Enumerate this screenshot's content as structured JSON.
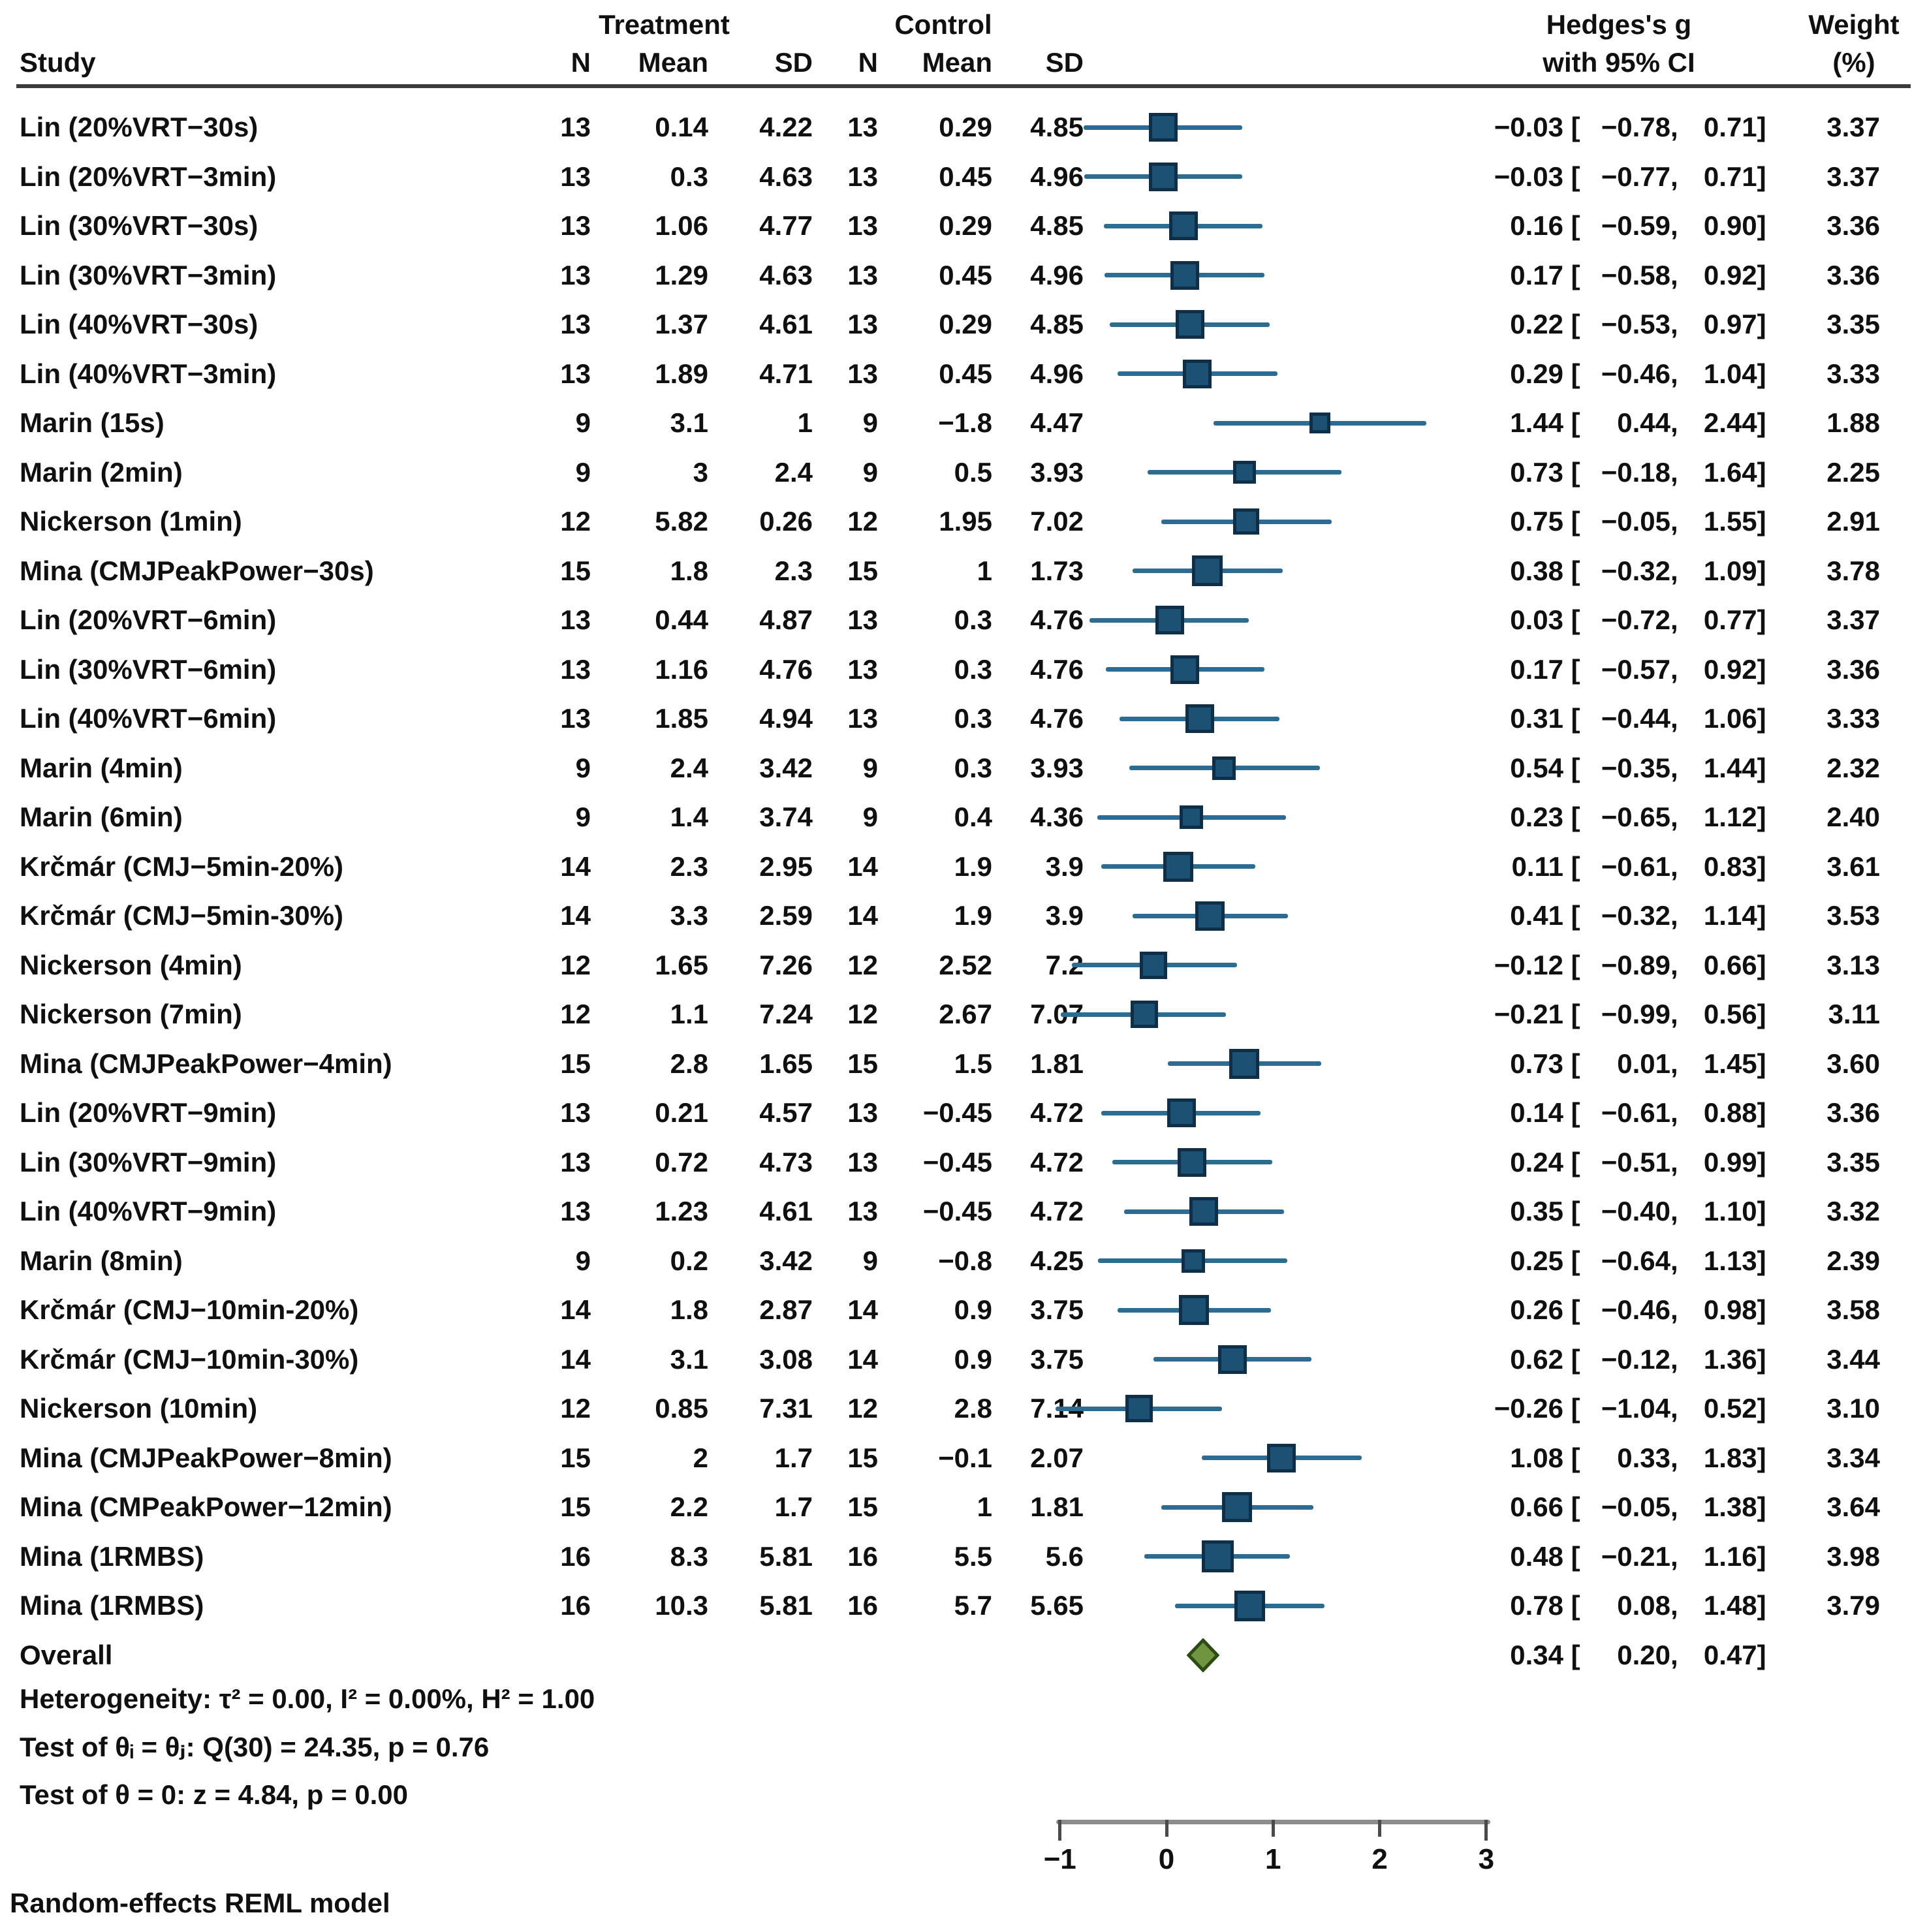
{
  "header": {
    "treatment": "Treatment",
    "control": "Control",
    "study": "Study",
    "n": "N",
    "mean": "Mean",
    "sd": "SD",
    "effect_line1": "Hedges's g",
    "effect_line2": "with 95% CI",
    "weight_line1": "Weight",
    "weight_line2": "(%)"
  },
  "chart_data": {
    "type": "forest",
    "effect_measure": "Hedges's g",
    "x_ticks": [
      -1,
      0,
      1,
      2,
      3
    ],
    "x_range": [
      -1,
      3
    ],
    "legend_position": "none",
    "grid": false,
    "studies": [
      {
        "study": "Lin (20%VRT-30s)",
        "t_n": "13",
        "t_mean": "0.14",
        "t_sd": "4.22",
        "c_n": "13",
        "c_mean": "0.29",
        "c_sd": "4.85",
        "g": -0.03,
        "ci_low": -0.78,
        "ci_high": 0.71,
        "weight": "3.37"
      },
      {
        "study": "Lin (20%VRT-3min)",
        "t_n": "13",
        "t_mean": "0.3",
        "t_sd": "4.63",
        "c_n": "13",
        "c_mean": "0.45",
        "c_sd": "4.96",
        "g": -0.03,
        "ci_low": -0.77,
        "ci_high": 0.71,
        "weight": "3.37"
      },
      {
        "study": "Lin (30%VRT-30s)",
        "t_n": "13",
        "t_mean": "1.06",
        "t_sd": "4.77",
        "c_n": "13",
        "c_mean": "0.29",
        "c_sd": "4.85",
        "g": 0.16,
        "ci_low": -0.59,
        "ci_high": 0.9,
        "weight": "3.36"
      },
      {
        "study": "Lin (30%VRT-3min)",
        "t_n": "13",
        "t_mean": "1.29",
        "t_sd": "4.63",
        "c_n": "13",
        "c_mean": "0.45",
        "c_sd": "4.96",
        "g": 0.17,
        "ci_low": -0.58,
        "ci_high": 0.92,
        "weight": "3.36"
      },
      {
        "study": "Lin (40%VRT-30s)",
        "t_n": "13",
        "t_mean": "1.37",
        "t_sd": "4.61",
        "c_n": "13",
        "c_mean": "0.29",
        "c_sd": "4.85",
        "g": 0.22,
        "ci_low": -0.53,
        "ci_high": 0.97,
        "weight": "3.35"
      },
      {
        "study": "Lin (40%VRT-3min)",
        "t_n": "13",
        "t_mean": "1.89",
        "t_sd": "4.71",
        "c_n": "13",
        "c_mean": "0.45",
        "c_sd": "4.96",
        "g": 0.29,
        "ci_low": -0.46,
        "ci_high": 1.04,
        "weight": "3.33"
      },
      {
        "study": "Marin (15s)",
        "t_n": "9",
        "t_mean": "3.1",
        "t_sd": "1",
        "c_n": "9",
        "c_mean": "-1.8",
        "c_sd": "4.47",
        "g": 1.44,
        "ci_low": 0.44,
        "ci_high": 2.44,
        "weight": "1.88"
      },
      {
        "study": "Marin (2min)",
        "t_n": "9",
        "t_mean": "3",
        "t_sd": "2.4",
        "c_n": "9",
        "c_mean": "0.5",
        "c_sd": "3.93",
        "g": 0.73,
        "ci_low": -0.18,
        "ci_high": 1.64,
        "weight": "2.25"
      },
      {
        "study": "Nickerson (1min)",
        "t_n": "12",
        "t_mean": "5.82",
        "t_sd": "0.26",
        "c_n": "12",
        "c_mean": "1.95",
        "c_sd": "7.02",
        "g": 0.75,
        "ci_low": -0.05,
        "ci_high": 1.55,
        "weight": "2.91"
      },
      {
        "study": "Mina (CMJPeakPower-30s)",
        "t_n": "15",
        "t_mean": "1.8",
        "t_sd": "2.3",
        "c_n": "15",
        "c_mean": "1",
        "c_sd": "1.73",
        "g": 0.38,
        "ci_low": -0.32,
        "ci_high": 1.09,
        "weight": "3.78"
      },
      {
        "study": "Lin (20%VRT-6min)",
        "t_n": "13",
        "t_mean": "0.44",
        "t_sd": "4.87",
        "c_n": "13",
        "c_mean": "0.3",
        "c_sd": "4.76",
        "g": 0.03,
        "ci_low": -0.72,
        "ci_high": 0.77,
        "weight": "3.37"
      },
      {
        "study": "Lin (30%VRT-6min)",
        "t_n": "13",
        "t_mean": "1.16",
        "t_sd": "4.76",
        "c_n": "13",
        "c_mean": "0.3",
        "c_sd": "4.76",
        "g": 0.17,
        "ci_low": -0.57,
        "ci_high": 0.92,
        "weight": "3.36"
      },
      {
        "study": "Lin (40%VRT-6min)",
        "t_n": "13",
        "t_mean": "1.85",
        "t_sd": "4.94",
        "c_n": "13",
        "c_mean": "0.3",
        "c_sd": "4.76",
        "g": 0.31,
        "ci_low": -0.44,
        "ci_high": 1.06,
        "weight": "3.33"
      },
      {
        "study": "Marin (4min)",
        "t_n": "9",
        "t_mean": "2.4",
        "t_sd": "3.42",
        "c_n": "9",
        "c_mean": "0.3",
        "c_sd": "3.93",
        "g": 0.54,
        "ci_low": -0.35,
        "ci_high": 1.44,
        "weight": "2.32"
      },
      {
        "study": "Marin (6min)",
        "t_n": "9",
        "t_mean": "1.4",
        "t_sd": "3.74",
        "c_n": "9",
        "c_mean": "0.4",
        "c_sd": "4.36",
        "g": 0.23,
        "ci_low": -0.65,
        "ci_high": 1.12,
        "weight": "2.40"
      },
      {
        "study": "Krčmár (CMJ-5min-20%)",
        "t_n": "14",
        "t_mean": "2.3",
        "t_sd": "2.95",
        "c_n": "14",
        "c_mean": "1.9",
        "c_sd": "3.9",
        "g": 0.11,
        "ci_low": -0.61,
        "ci_high": 0.83,
        "weight": "3.61"
      },
      {
        "study": "Krčmár (CMJ-5min-30%)",
        "t_n": "14",
        "t_mean": "3.3",
        "t_sd": "2.59",
        "c_n": "14",
        "c_mean": "1.9",
        "c_sd": "3.9",
        "g": 0.41,
        "ci_low": -0.32,
        "ci_high": 1.14,
        "weight": "3.53"
      },
      {
        "study": "Nickerson (4min)",
        "t_n": "12",
        "t_mean": "1.65",
        "t_sd": "7.26",
        "c_n": "12",
        "c_mean": "2.52",
        "c_sd": "7.2",
        "g": -0.12,
        "ci_low": -0.89,
        "ci_high": 0.66,
        "weight": "3.13"
      },
      {
        "study": "Nickerson (7min)",
        "t_n": "12",
        "t_mean": "1.1",
        "t_sd": "7.24",
        "c_n": "12",
        "c_mean": "2.67",
        "c_sd": "7.07",
        "g": -0.21,
        "ci_low": -0.99,
        "ci_high": 0.56,
        "weight": "3.11"
      },
      {
        "study": "Mina (CMJPeakPower-4min)",
        "t_n": "15",
        "t_mean": "2.8",
        "t_sd": "1.65",
        "c_n": "15",
        "c_mean": "1.5",
        "c_sd": "1.81",
        "g": 0.73,
        "ci_low": 0.01,
        "ci_high": 1.45,
        "weight": "3.60"
      },
      {
        "study": "Lin (20%VRT-9min)",
        "t_n": "13",
        "t_mean": "0.21",
        "t_sd": "4.57",
        "c_n": "13",
        "c_mean": "-0.45",
        "c_sd": "4.72",
        "g": 0.14,
        "ci_low": -0.61,
        "ci_high": 0.88,
        "weight": "3.36"
      },
      {
        "study": "Lin (30%VRT-9min)",
        "t_n": "13",
        "t_mean": "0.72",
        "t_sd": "4.73",
        "c_n": "13",
        "c_mean": "-0.45",
        "c_sd": "4.72",
        "g": 0.24,
        "ci_low": -0.51,
        "ci_high": 0.99,
        "weight": "3.35"
      },
      {
        "study": "Lin (40%VRT-9min)",
        "t_n": "13",
        "t_mean": "1.23",
        "t_sd": "4.61",
        "c_n": "13",
        "c_mean": "-0.45",
        "c_sd": "4.72",
        "g": 0.35,
        "ci_low": -0.4,
        "ci_high": 1.1,
        "weight": "3.32"
      },
      {
        "study": "Marin (8min)",
        "t_n": "9",
        "t_mean": "0.2",
        "t_sd": "3.42",
        "c_n": "9",
        "c_mean": "-0.8",
        "c_sd": "4.25",
        "g": 0.25,
        "ci_low": -0.64,
        "ci_high": 1.13,
        "weight": "2.39"
      },
      {
        "study": "Krčmár (CMJ-10min-20%)",
        "t_n": "14",
        "t_mean": "1.8",
        "t_sd": "2.87",
        "c_n": "14",
        "c_mean": "0.9",
        "c_sd": "3.75",
        "g": 0.26,
        "ci_low": -0.46,
        "ci_high": 0.98,
        "weight": "3.58"
      },
      {
        "study": "Krčmár (CMJ-10min-30%)",
        "t_n": "14",
        "t_mean": "3.1",
        "t_sd": "3.08",
        "c_n": "14",
        "c_mean": "0.9",
        "c_sd": "3.75",
        "g": 0.62,
        "ci_low": -0.12,
        "ci_high": 1.36,
        "weight": "3.44"
      },
      {
        "study": "Nickerson (10min)",
        "t_n": "12",
        "t_mean": "0.85",
        "t_sd": "7.31",
        "c_n": "12",
        "c_mean": "2.8",
        "c_sd": "7.14",
        "g": -0.26,
        "ci_low": -1.04,
        "ci_high": 0.52,
        "weight": "3.10"
      },
      {
        "study": "Mina (CMJPeakPower-8min)",
        "t_n": "15",
        "t_mean": "2",
        "t_sd": "1.7",
        "c_n": "15",
        "c_mean": "-0.1",
        "c_sd": "2.07",
        "g": 1.08,
        "ci_low": 0.33,
        "ci_high": 1.83,
        "weight": "3.34"
      },
      {
        "study": "Mina (CMPeakPower-12min)",
        "t_n": "15",
        "t_mean": "2.2",
        "t_sd": "1.7",
        "c_n": "15",
        "c_mean": "1",
        "c_sd": "1.81",
        "g": 0.66,
        "ci_low": -0.05,
        "ci_high": 1.38,
        "weight": "3.64"
      },
      {
        "study": "Mina (1RMBS)",
        "t_n": "16",
        "t_mean": "8.3",
        "t_sd": "5.81",
        "c_n": "16",
        "c_mean": "5.5",
        "c_sd": "5.6",
        "g": 0.48,
        "ci_low": -0.21,
        "ci_high": 1.16,
        "weight": "3.98"
      },
      {
        "study": "Mina (1RMBS)",
        "t_n": "16",
        "t_mean": "10.3",
        "t_sd": "5.81",
        "c_n": "16",
        "c_mean": "5.7",
        "c_sd": "5.65",
        "g": 0.78,
        "ci_low": 0.08,
        "ci_high": 1.48,
        "weight": "3.79"
      }
    ],
    "overall": {
      "label": "Overall",
      "g": 0.34,
      "ci_low": 0.2,
      "ci_high": 0.47
    },
    "heterogeneity": "Heterogeneity: τ² = 0.00, I² = 0.00%, H² = 1.00",
    "test_between": "Test of θᵢ = θⱼ: Q(30) = 24.35, p = 0.76",
    "test_zero": "Test of θ = 0: z = 4.84, p = 0.00",
    "model_note": "Random-effects REML model",
    "colors": {
      "marker_fill": "#1c5174",
      "marker_edge": "#0f2f49",
      "ci_line": "#2c6c92",
      "diamond_fill": "#70943f",
      "diamond_edge": "#2b4d13"
    }
  }
}
